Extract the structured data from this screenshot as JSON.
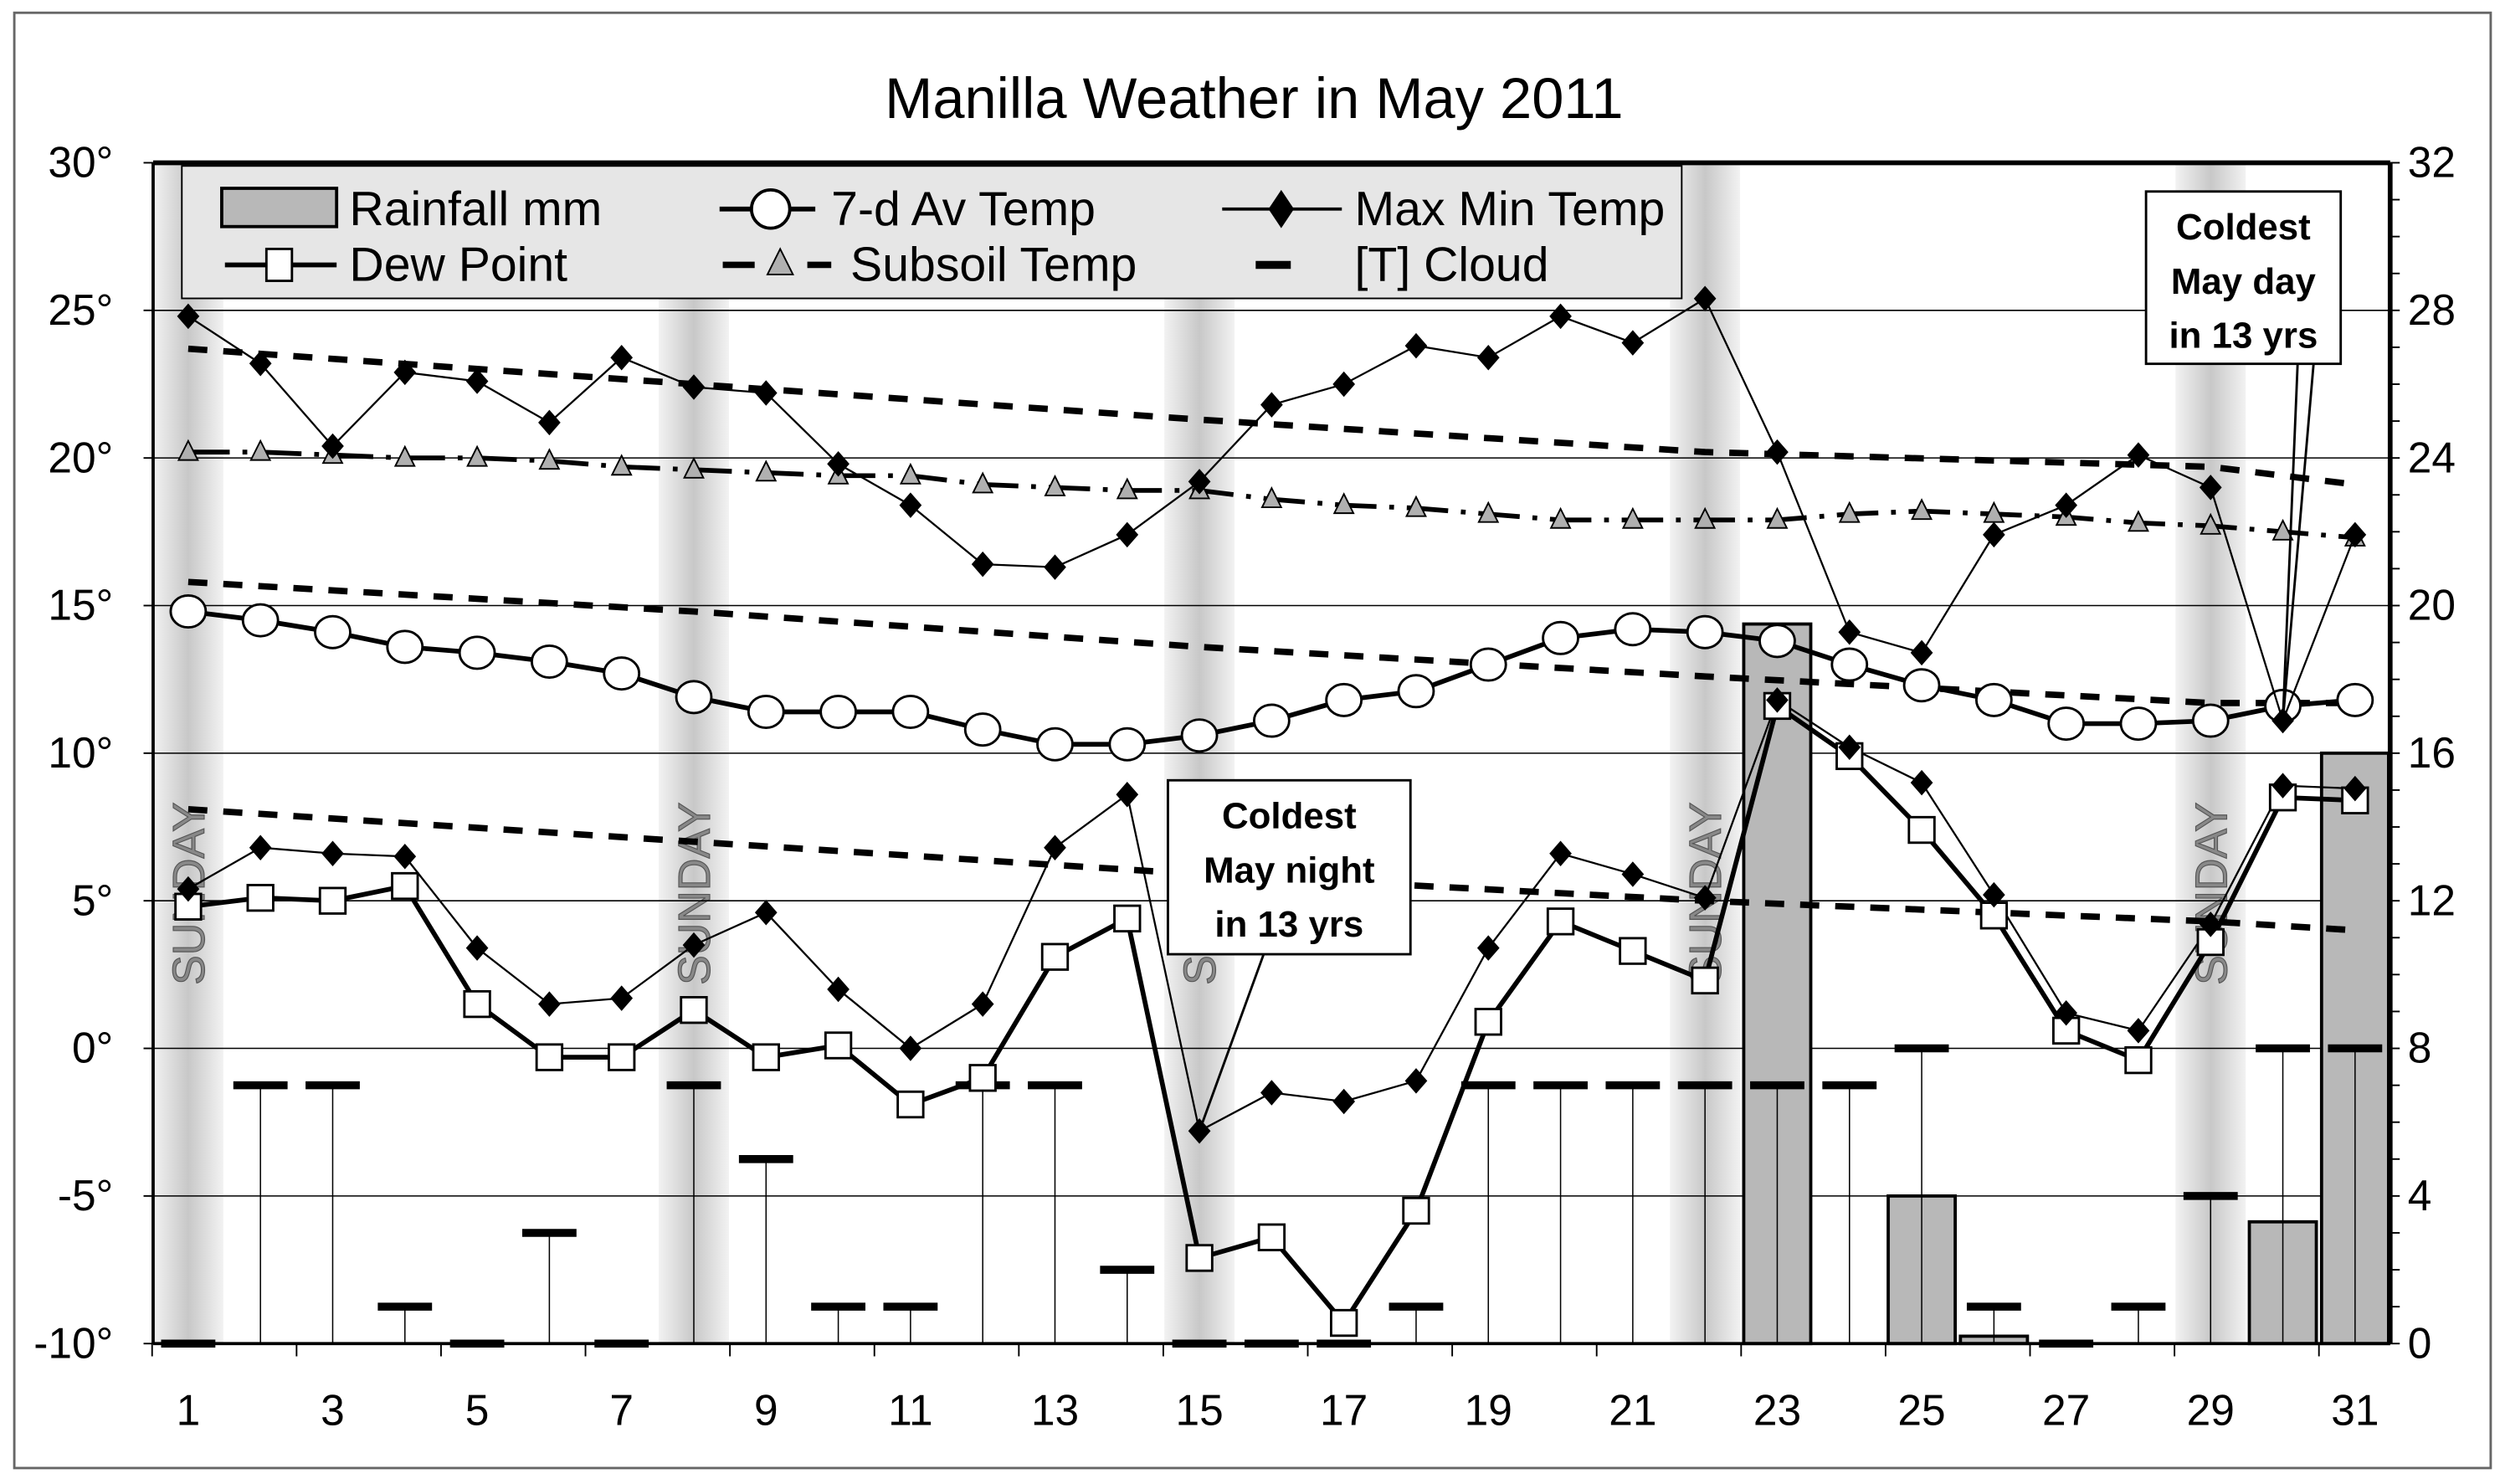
{
  "chart_data": {
    "type": "line",
    "title": "Manilla Weather in May 2011",
    "x": [
      1,
      2,
      3,
      4,
      5,
      6,
      7,
      8,
      9,
      10,
      11,
      12,
      13,
      14,
      15,
      16,
      17,
      18,
      19,
      20,
      21,
      22,
      23,
      24,
      25,
      26,
      27,
      28,
      29,
      30,
      31
    ],
    "x_tick_labels": [
      "1",
      "3",
      "5",
      "7",
      "9",
      "11",
      "13",
      "15",
      "17",
      "19",
      "21",
      "23",
      "25",
      "27",
      "29",
      "31"
    ],
    "y_left": {
      "range": [
        -10,
        30
      ],
      "tick_labels": [
        "30°",
        "25°",
        "20°",
        "15°",
        "10°",
        "5°",
        "0°",
        "-5°",
        "-10°"
      ],
      "grid": true
    },
    "y_right": {
      "range": [
        0,
        32
      ],
      "tick_labels": [
        "32",
        "28",
        "24",
        "20",
        "16",
        "12",
        "8",
        "4",
        "0"
      ]
    },
    "legend": {
      "placement": "top",
      "entries": [
        "Rainfall mm",
        "7-d Av Temp",
        "Max Min Temp",
        "Dew Point",
        "Subsoil Temp",
        "[T] Cloud"
      ]
    },
    "series": [
      {
        "name": "Max Min Temp",
        "part": "max",
        "axis": "left",
        "values": [
          24.8,
          23.2,
          20.4,
          22.9,
          22.6,
          21.2,
          23.4,
          22.4,
          22.2,
          19.8,
          18.4,
          16.4,
          16.3,
          17.4,
          19.2,
          21.8,
          22.5,
          23.8,
          23.4,
          24.8,
          23.9,
          25.4,
          20.2,
          14.1,
          13.4,
          17.4,
          18.4,
          20.1,
          19.0,
          11.1,
          17.4
        ]
      },
      {
        "name": "Max Min Temp",
        "part": "min",
        "axis": "left",
        "values": [
          5.4,
          6.8,
          6.6,
          6.5,
          3.4,
          1.5,
          1.7,
          3.5,
          4.6,
          2.0,
          0.0,
          1.5,
          6.8,
          8.6,
          -2.8,
          -1.5,
          -1.8,
          -1.1,
          3.4,
          6.6,
          5.9,
          5.1,
          11.8,
          10.2,
          9.0,
          5.2,
          1.2,
          0.6,
          4.2,
          8.9,
          8.8
        ]
      },
      {
        "name": "Dew Point",
        "axis": "left",
        "values": [
          4.8,
          5.1,
          5.0,
          5.5,
          1.5,
          -0.3,
          -0.3,
          1.3,
          -0.3,
          0.1,
          -1.9,
          -1.0,
          3.1,
          4.4,
          -7.1,
          -6.4,
          -9.3,
          -5.5,
          0.9,
          4.3,
          3.3,
          2.3,
          11.6,
          9.9,
          7.4,
          4.5,
          0.6,
          -0.4,
          3.6,
          8.5,
          8.4
        ]
      },
      {
        "name": "7-d Av Temp",
        "axis": "left",
        "values": [
          14.8,
          14.5,
          14.1,
          13.6,
          13.4,
          13.1,
          12.7,
          11.9,
          11.4,
          11.4,
          11.4,
          10.8,
          10.3,
          10.3,
          10.6,
          11.1,
          11.8,
          12.1,
          13.0,
          13.9,
          14.2,
          14.1,
          13.8,
          13.0,
          12.3,
          11.8,
          11.0,
          11.0,
          11.1,
          11.6,
          11.8
        ]
      },
      {
        "name": "Subsoil Temp",
        "axis": "left",
        "values": [
          20.2,
          20.2,
          20.1,
          20.0,
          20.0,
          19.9,
          19.7,
          19.6,
          19.5,
          19.4,
          19.4,
          19.1,
          19.0,
          18.9,
          18.9,
          18.6,
          18.4,
          18.3,
          18.1,
          17.9,
          17.9,
          17.9,
          17.9,
          18.1,
          18.2,
          18.1,
          18.0,
          17.8,
          17.7,
          17.5,
          17.3
        ]
      },
      {
        "name": "[T] Cloud",
        "axis": "right",
        "values": [
          0,
          7,
          7,
          1,
          0,
          3,
          0,
          7,
          5,
          1,
          1,
          7,
          7,
          2,
          0,
          0,
          0,
          1,
          7,
          7,
          7,
          7,
          7,
          7,
          8,
          1,
          0,
          1,
          4,
          8,
          8
        ]
      },
      {
        "name": "Rainfall mm",
        "axis": "right",
        "type": "bar",
        "values": [
          0,
          0,
          0,
          0,
          0,
          0,
          0,
          0,
          0,
          0,
          0,
          0,
          0,
          0,
          0,
          0,
          0,
          0,
          0,
          0,
          0,
          0,
          19.5,
          0,
          4.0,
          0.2,
          0,
          0,
          0,
          3.3,
          16.0
        ]
      }
    ],
    "reference_lines": [
      {
        "style": "dotted",
        "x": [
          1,
          8,
          15,
          22,
          29,
          31
        ],
        "values": [
          23.7,
          22.5,
          21.3,
          20.2,
          19.7,
          19.1
        ]
      },
      {
        "style": "dotted",
        "x": [
          1,
          8,
          15,
          22,
          29,
          31
        ],
        "values": [
          15.8,
          14.8,
          13.6,
          12.6,
          11.7,
          11.7
        ]
      },
      {
        "style": "dotted",
        "x": [
          1,
          8,
          15,
          22,
          29,
          31
        ],
        "values": [
          8.1,
          7.0,
          5.9,
          5.0,
          4.3,
          4.0
        ]
      }
    ],
    "shaded_days": {
      "days": [
        1,
        8,
        15,
        22,
        29
      ],
      "label": "SUNDAY"
    },
    "annotations": [
      {
        "lines": [
          "Coldest",
          "May night",
          "in 13 yrs"
        ],
        "day": 15,
        "target": "min"
      },
      {
        "lines": [
          "Coldest",
          "May day",
          "in 13 yrs"
        ],
        "day": 30,
        "target": "max"
      }
    ],
    "colors": {
      "rain": "#b8b8b8",
      "sunday_band": "#c8c8c8",
      "subsoil_marker": "#b0b0b0",
      "legend_bg": "#e6e6e6"
    }
  }
}
